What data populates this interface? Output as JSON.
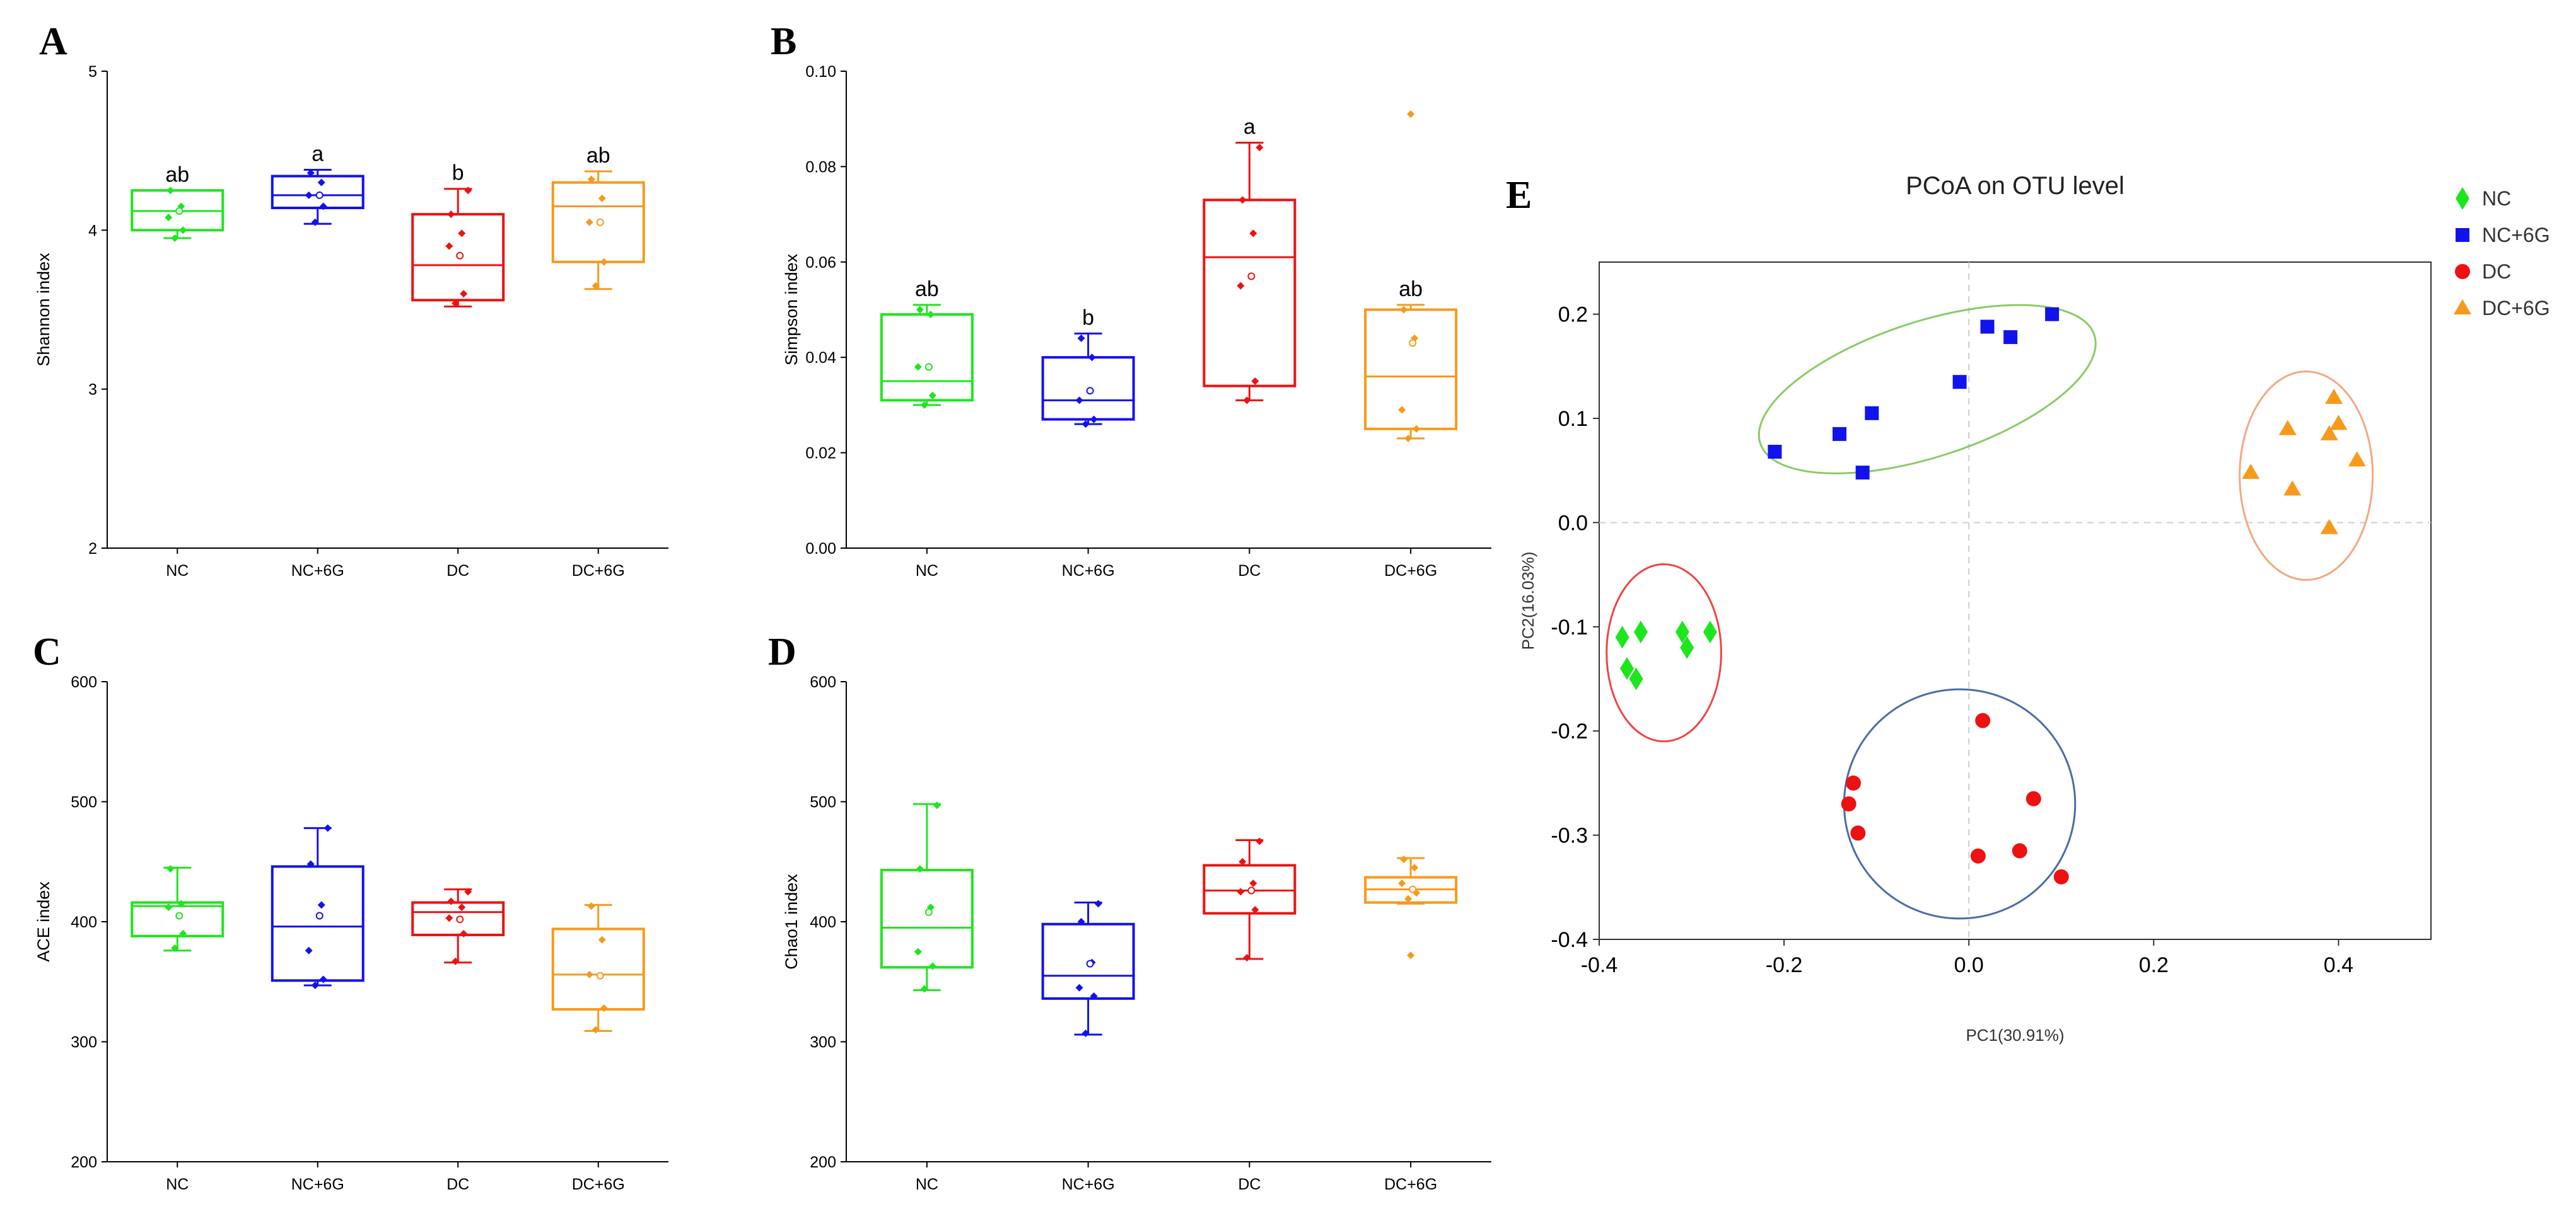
{
  "panel_letters": [
    "A",
    "B",
    "C",
    "D",
    "E"
  ],
  "colors": {
    "NC": "#1ee61e",
    "NC+6G": "#1212ee",
    "DC": "#ee1111",
    "DC+6G": "#f79a1c"
  },
  "chart_data": [
    {
      "panel": "A",
      "type": "box",
      "ylabel": "Shannon index",
      "ylim": [
        2,
        5
      ],
      "yticks": [
        "2",
        "3",
        "4",
        "5"
      ],
      "categories": [
        "NC",
        "NC+6G",
        "DC",
        "DC+6G"
      ],
      "boxes": [
        {
          "group": "NC",
          "min": 3.95,
          "q1": 4.0,
          "median": 4.12,
          "q3": 4.25,
          "max": 4.25,
          "mean": 4.12,
          "points": [
            3.95,
            4.0,
            4.08,
            4.15,
            4.25
          ],
          "sig": "ab"
        },
        {
          "group": "NC+6G",
          "min": 4.04,
          "q1": 4.14,
          "median": 4.22,
          "q3": 4.34,
          "max": 4.38,
          "mean": 4.22,
          "points": [
            4.05,
            4.15,
            4.22,
            4.3,
            4.36
          ],
          "sig": "a"
        },
        {
          "group": "DC",
          "min": 3.52,
          "q1": 3.56,
          "median": 3.78,
          "q3": 4.1,
          "max": 4.26,
          "mean": 3.84,
          "points": [
            3.54,
            3.6,
            3.9,
            3.98,
            4.1,
            4.25
          ],
          "sig": "b"
        },
        {
          "group": "DC+6G",
          "min": 3.63,
          "q1": 3.8,
          "median": 4.15,
          "q3": 4.3,
          "max": 4.37,
          "mean": 4.05,
          "points": [
            3.65,
            3.8,
            4.05,
            4.2,
            4.32
          ],
          "sig": "ab"
        }
      ]
    },
    {
      "panel": "B",
      "type": "box",
      "ylabel": "Simpson index",
      "ylim": [
        0,
        0.1
      ],
      "yticks": [
        "0.00",
        "0.02",
        "0.04",
        "0.06",
        "0.08",
        "0.10"
      ],
      "categories": [
        "NC",
        "NC+6G",
        "DC",
        "DC+6G"
      ],
      "boxes": [
        {
          "group": "NC",
          "min": 0.03,
          "q1": 0.031,
          "median": 0.035,
          "q3": 0.049,
          "max": 0.051,
          "mean": 0.038,
          "points": [
            0.03,
            0.032,
            0.038,
            0.049,
            0.05
          ],
          "sig": "ab"
        },
        {
          "group": "NC+6G",
          "min": 0.026,
          "q1": 0.027,
          "median": 0.031,
          "q3": 0.04,
          "max": 0.045,
          "mean": 0.033,
          "points": [
            0.026,
            0.027,
            0.031,
            0.04,
            0.044
          ],
          "sig": "b"
        },
        {
          "group": "DC",
          "min": 0.031,
          "q1": 0.034,
          "median": 0.061,
          "q3": 0.073,
          "max": 0.085,
          "mean": 0.057,
          "points": [
            0.031,
            0.035,
            0.055,
            0.066,
            0.073,
            0.084
          ],
          "sig": "a"
        },
        {
          "group": "DC+6G",
          "min": 0.023,
          "q1": 0.025,
          "median": 0.036,
          "q3": 0.05,
          "max": 0.051,
          "mean": 0.043,
          "points": [
            0.023,
            0.025,
            0.029,
            0.044,
            0.05
          ],
          "outliers": [
            0.091
          ],
          "sig": "ab"
        }
      ]
    },
    {
      "panel": "C",
      "type": "box",
      "ylabel": "ACE index",
      "ylim": [
        200,
        600
      ],
      "yticks": [
        "200",
        "300",
        "400",
        "500",
        "600"
      ],
      "categories": [
        "NC",
        "NC+6G",
        "DC",
        "DC+6G"
      ],
      "boxes": [
        {
          "group": "NC",
          "min": 376,
          "q1": 388,
          "median": 413,
          "q3": 416,
          "max": 445,
          "mean": 405,
          "points": [
            378,
            390,
            412,
            415,
            444
          ]
        },
        {
          "group": "NC+6G",
          "min": 347,
          "q1": 351,
          "median": 396,
          "q3": 446,
          "max": 478,
          "mean": 405,
          "points": [
            347,
            352,
            376,
            414,
            448,
            478
          ]
        },
        {
          "group": "DC",
          "min": 366,
          "q1": 389,
          "median": 408,
          "q3": 416,
          "max": 427,
          "mean": 402,
          "points": [
            367,
            390,
            403,
            412,
            417,
            425
          ]
        },
        {
          "group": "DC+6G",
          "min": 309,
          "q1": 327,
          "median": 356,
          "q3": 394,
          "max": 414,
          "mean": 355,
          "points": [
            310,
            328,
            356,
            385,
            413
          ]
        }
      ]
    },
    {
      "panel": "D",
      "type": "box",
      "ylabel": "Chao1 index",
      "ylim": [
        200,
        600
      ],
      "yticks": [
        "200",
        "300",
        "400",
        "500",
        "600"
      ],
      "categories": [
        "NC",
        "NC+6G",
        "DC",
        "DC+6G"
      ],
      "boxes": [
        {
          "group": "NC",
          "min": 343,
          "q1": 362,
          "median": 395,
          "q3": 443,
          "max": 498,
          "mean": 408,
          "points": [
            344,
            363,
            375,
            412,
            444,
            497
          ]
        },
        {
          "group": "NC+6G",
          "min": 306,
          "q1": 336,
          "median": 355,
          "q3": 398,
          "max": 416,
          "mean": 365,
          "points": [
            307,
            338,
            345,
            366,
            400,
            415
          ]
        },
        {
          "group": "DC",
          "min": 369,
          "q1": 407,
          "median": 426,
          "q3": 447,
          "max": 468,
          "mean": 426,
          "points": [
            370,
            410,
            425,
            432,
            450,
            467
          ]
        },
        {
          "group": "DC+6G",
          "min": 415,
          "q1": 416,
          "median": 427,
          "q3": 437,
          "max": 453,
          "mean": 427,
          "points": [
            419,
            424,
            432,
            445,
            452
          ],
          "outliers": [
            372
          ]
        }
      ]
    },
    {
      "panel": "E",
      "type": "scatter",
      "title": "PCoA on OTU level",
      "xlabel": "PC1(30.91%)",
      "ylabel": "PC2(16.03%)",
      "xlim": [
        -0.4,
        0.5
      ],
      "ylim": [
        -0.4,
        0.25
      ],
      "xticks": [
        -0.4,
        -0.2,
        0.0,
        0.2,
        0.4
      ],
      "yticks": [
        -0.4,
        -0.3,
        -0.2,
        -0.1,
        0.0,
        0.1,
        0.2
      ],
      "xtick_labels": [
        "-0.4",
        "-0.2",
        "0.0",
        "0.2",
        "0.4"
      ],
      "ytick_labels": [
        "-0.4",
        "-0.3",
        "-0.2",
        "-0.1",
        "0.0",
        "0.1",
        "0.2"
      ],
      "series": [
        {
          "name": "NC",
          "marker": "diamond",
          "x": [
            -0.375,
            -0.37,
            -0.36,
            -0.355,
            -0.31,
            -0.305,
            -0.28
          ],
          "y": [
            -0.11,
            -0.14,
            -0.15,
            -0.105,
            -0.105,
            -0.12,
            -0.105
          ]
        },
        {
          "name": "NC+6G",
          "marker": "square",
          "x": [
            -0.21,
            -0.14,
            -0.115,
            -0.105,
            -0.01,
            0.02,
            0.045,
            0.09
          ],
          "y": [
            0.068,
            0.085,
            0.048,
            0.105,
            0.135,
            0.188,
            0.178,
            0.2
          ]
        },
        {
          "name": "DC",
          "marker": "circle",
          "x": [
            -0.125,
            -0.13,
            -0.12,
            0.01,
            0.07,
            0.055,
            0.1,
            0.015
          ],
          "y": [
            -0.25,
            -0.27,
            -0.298,
            -0.32,
            -0.265,
            -0.315,
            -0.34,
            -0.19
          ]
        },
        {
          "name": "DC+6G",
          "marker": "triangle",
          "x": [
            0.305,
            0.345,
            0.35,
            0.39,
            0.395,
            0.4,
            0.42,
            0.39
          ],
          "y": [
            0.048,
            0.09,
            0.032,
            0.085,
            0.12,
            0.095,
            0.06,
            -0.005
          ]
        }
      ],
      "ellipses": [
        {
          "group": "NC",
          "cx": -0.33,
          "cy": -0.125,
          "rx": 0.062,
          "ry": 0.085,
          "rotation": 0,
          "color": "#ee4444"
        },
        {
          "group": "NC+6G",
          "cx": -0.045,
          "cy": 0.128,
          "rx": 0.19,
          "ry": 0.065,
          "rotation": -18,
          "color": "#88cc66"
        },
        {
          "group": "DC",
          "cx": -0.01,
          "cy": -0.27,
          "rx": 0.125,
          "ry": 0.11,
          "rotation": 0,
          "color": "#4a6ca8"
        },
        {
          "group": "DC+6G",
          "cx": 0.365,
          "cy": 0.045,
          "rx": 0.072,
          "ry": 0.1,
          "rotation": 0,
          "color": "#f4a880"
        }
      ],
      "legend": [
        "NC",
        "NC+6G",
        "DC",
        "DC+6G"
      ]
    }
  ]
}
